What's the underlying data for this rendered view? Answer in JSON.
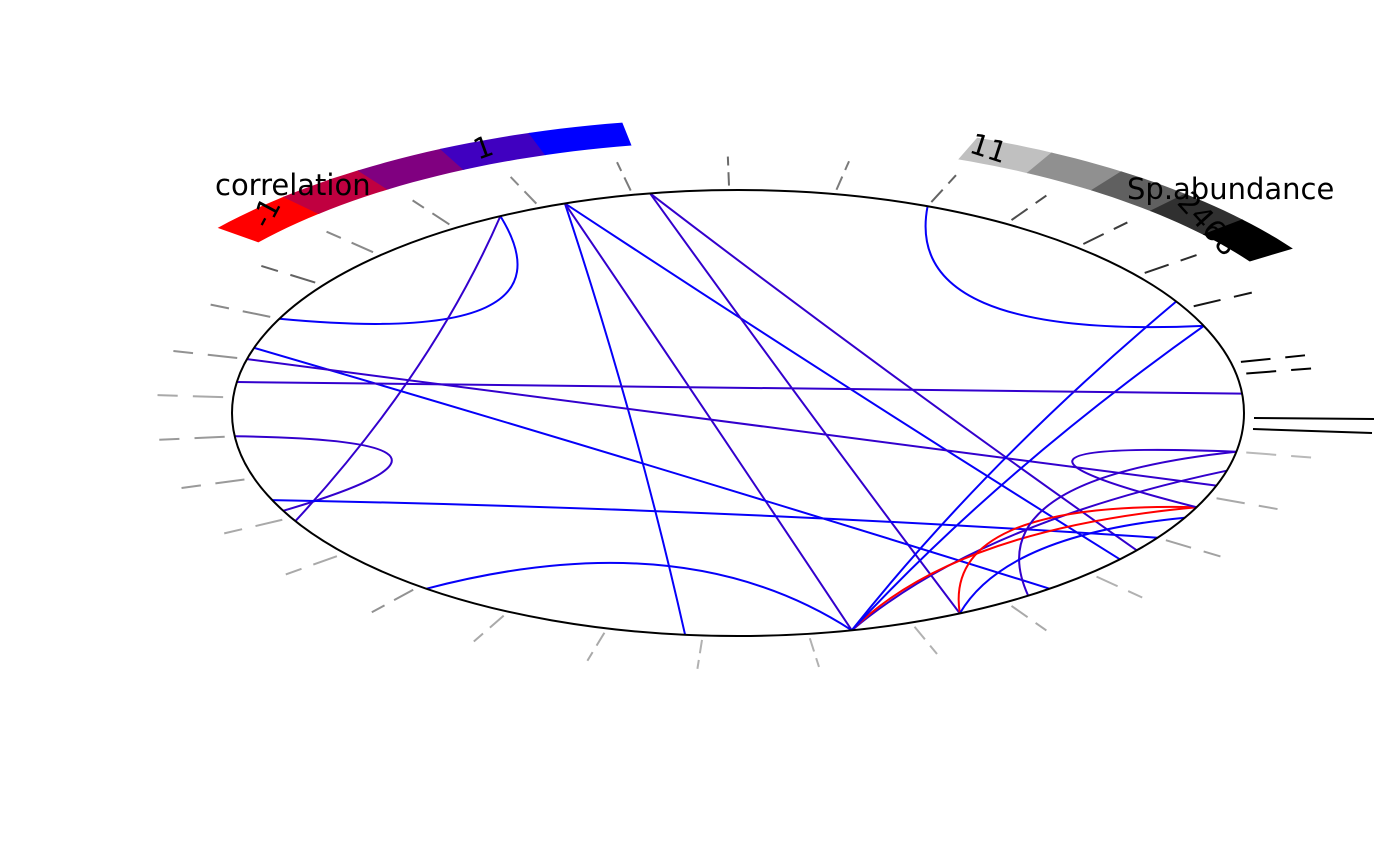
{
  "chart_data": {
    "type": "chord",
    "ylim": [
      -1,
      1
    ],
    "legends": {
      "correlation": {
        "title": "correlation",
        "min_label": "-1",
        "max_label": "1",
        "range": [
          -1,
          1
        ],
        "colors": [
          "#ff0000",
          "#c00040",
          "#800080",
          "#4000c0",
          "#0000ff"
        ]
      },
      "abundance": {
        "title": "Sp.abundance",
        "min_label": "11",
        "max_label": "2468",
        "range": [
          11,
          2468
        ],
        "colors": [
          "#c0c0c0",
          "#909090",
          "#606060",
          "#303030",
          "#000000"
        ]
      }
    },
    "nodes": [
      {
        "angle": 10,
        "abundance": 2468
      },
      {
        "angle": 13,
        "abundance": 2468
      },
      {
        "angle": 28,
        "abundance": 2200
      },
      {
        "angle": 38,
        "abundance": 1900
      },
      {
        "angle": 48,
        "abundance": 1700
      },
      {
        "angle": 58,
        "abundance": 1500
      },
      {
        "angle": 68,
        "abundance": 1200
      },
      {
        "angle": 79,
        "abundance": 900
      },
      {
        "angle": 91,
        "abundance": 1100
      },
      {
        "angle": 102,
        "abundance": 900
      },
      {
        "angle": 113,
        "abundance": 700
      },
      {
        "angle": 124,
        "abundance": 800
      },
      {
        "angle": 135,
        "abundance": 700
      },
      {
        "angle": 145,
        "abundance": 1200
      },
      {
        "angle": 155,
        "abundance": 700
      },
      {
        "angle": 166,
        "abundance": 600
      },
      {
        "angle": 176,
        "abundance": 300
      },
      {
        "angle": 186,
        "abundance": 500
      },
      {
        "angle": 197,
        "abundance": 500
      },
      {
        "angle": 208,
        "abundance": 300
      },
      {
        "angle": 219,
        "abundance": 300
      },
      {
        "angle": 231,
        "abundance": 600
      },
      {
        "angle": 243,
        "abundance": 300
      },
      {
        "angle": 255,
        "abundance": 300
      },
      {
        "angle": 266,
        "abundance": 200
      },
      {
        "angle": 278,
        "abundance": 200
      },
      {
        "angle": 290,
        "abundance": 200
      },
      {
        "angle": 302,
        "abundance": 300
      },
      {
        "angle": 314,
        "abundance": 200
      },
      {
        "angle": 326,
        "abundance": 400
      },
      {
        "angle": 338,
        "abundance": 300
      },
      {
        "angle": 350,
        "abundance": 100
      }
    ],
    "links": [
      {
        "from_angle": 118,
        "to_angle": 155,
        "bulge": 0.55,
        "correlation": 0.95
      },
      {
        "from_angle": 110,
        "to_angle": 264,
        "bulge": 0.1,
        "correlation": 0.95
      },
      {
        "from_angle": 110,
        "to_angle": 319,
        "bulge": 0.05,
        "correlation": 0.95
      },
      {
        "from_angle": 110,
        "to_angle": 283,
        "bulge": 0.05,
        "correlation": 0.6
      },
      {
        "from_angle": 118,
        "to_angle": 209,
        "bulge": 0.1,
        "correlation": 0.6
      },
      {
        "from_angle": 100,
        "to_angle": 296,
        "bulge": 0.05,
        "correlation": 0.6
      },
      {
        "from_angle": 100,
        "to_angle": 322,
        "bulge": 0.05,
        "correlation": 0.6
      },
      {
        "from_angle": 163,
        "to_angle": 308,
        "bulge": 0.05,
        "correlation": 0.95
      },
      {
        "from_angle": 166,
        "to_angle": 341,
        "bulge": 0.03,
        "correlation": 0.6
      },
      {
        "from_angle": 186,
        "to_angle": 206,
        "bulge": 0.55,
        "correlation": 0.6
      },
      {
        "from_angle": 203,
        "to_angle": 326,
        "bulge": 0.1,
        "correlation": 0.95
      },
      {
        "from_angle": 232,
        "to_angle": 283,
        "bulge": 0.45,
        "correlation": 0.95
      },
      {
        "from_angle": 283,
        "to_angle": 345,
        "bulge": 0.2,
        "correlation": 0.6
      },
      {
        "from_angle": 283,
        "to_angle": 335,
        "bulge": 0.25,
        "correlation": -1
      },
      {
        "from_angle": 283,
        "to_angle": 23,
        "bulge": 0.1,
        "correlation": 0.95
      },
      {
        "from_angle": 283,
        "to_angle": 30,
        "bulge": 0.1,
        "correlation": 0.95
      },
      {
        "from_angle": 296,
        "to_angle": 335,
        "bulge": 0.4,
        "correlation": -1
      },
      {
        "from_angle": 305,
        "to_angle": 350,
        "bulge": 0.4,
        "correlation": 0.6
      },
      {
        "from_angle": 350,
        "to_angle": 335,
        "bulge": 0.6,
        "correlation": 0.6
      },
      {
        "from_angle": 296,
        "to_angle": 332,
        "bulge": 0.2,
        "correlation": 0.95
      },
      {
        "from_angle": 23,
        "to_angle": 68,
        "bulge": 0.5,
        "correlation": 0.95
      },
      {
        "from_angle": 172,
        "to_angle": 5,
        "bulge": 0.05,
        "correlation": 0.6
      }
    ]
  }
}
